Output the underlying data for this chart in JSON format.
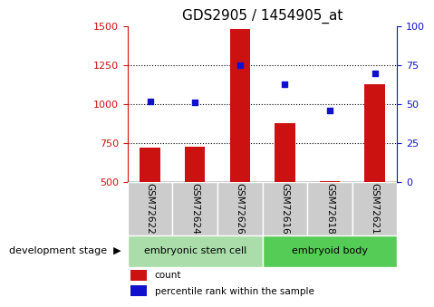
{
  "title": "GDS2905 / 1454905_at",
  "samples": [
    "GSM72622",
    "GSM72624",
    "GSM72626",
    "GSM72616",
    "GSM72618",
    "GSM72621"
  ],
  "counts": [
    720,
    730,
    1480,
    880,
    510,
    1130
  ],
  "percentiles": [
    52,
    51,
    75,
    63,
    46,
    70
  ],
  "ylim_left": [
    500,
    1500
  ],
  "ylim_right": [
    0,
    100
  ],
  "yticks_left": [
    500,
    750,
    1000,
    1250,
    1500
  ],
  "yticks_right": [
    0,
    25,
    50,
    75,
    100
  ],
  "bar_color": "#cc1111",
  "dot_color": "#1111cc",
  "bar_width": 0.45,
  "groups": [
    {
      "label": "embryonic stem cell",
      "indices": [
        0,
        1,
        2
      ],
      "color": "#aaddaa"
    },
    {
      "label": "embryoid body",
      "indices": [
        3,
        4,
        5
      ],
      "color": "#55cc55"
    }
  ],
  "group_label": "development stage",
  "legend_count": "count",
  "legend_percentile": "percentile rank within the sample",
  "grid_dotted_ticks": [
    750,
    1000,
    1250
  ],
  "xticklabel_area_color": "#cccccc",
  "title_fontsize": 11
}
